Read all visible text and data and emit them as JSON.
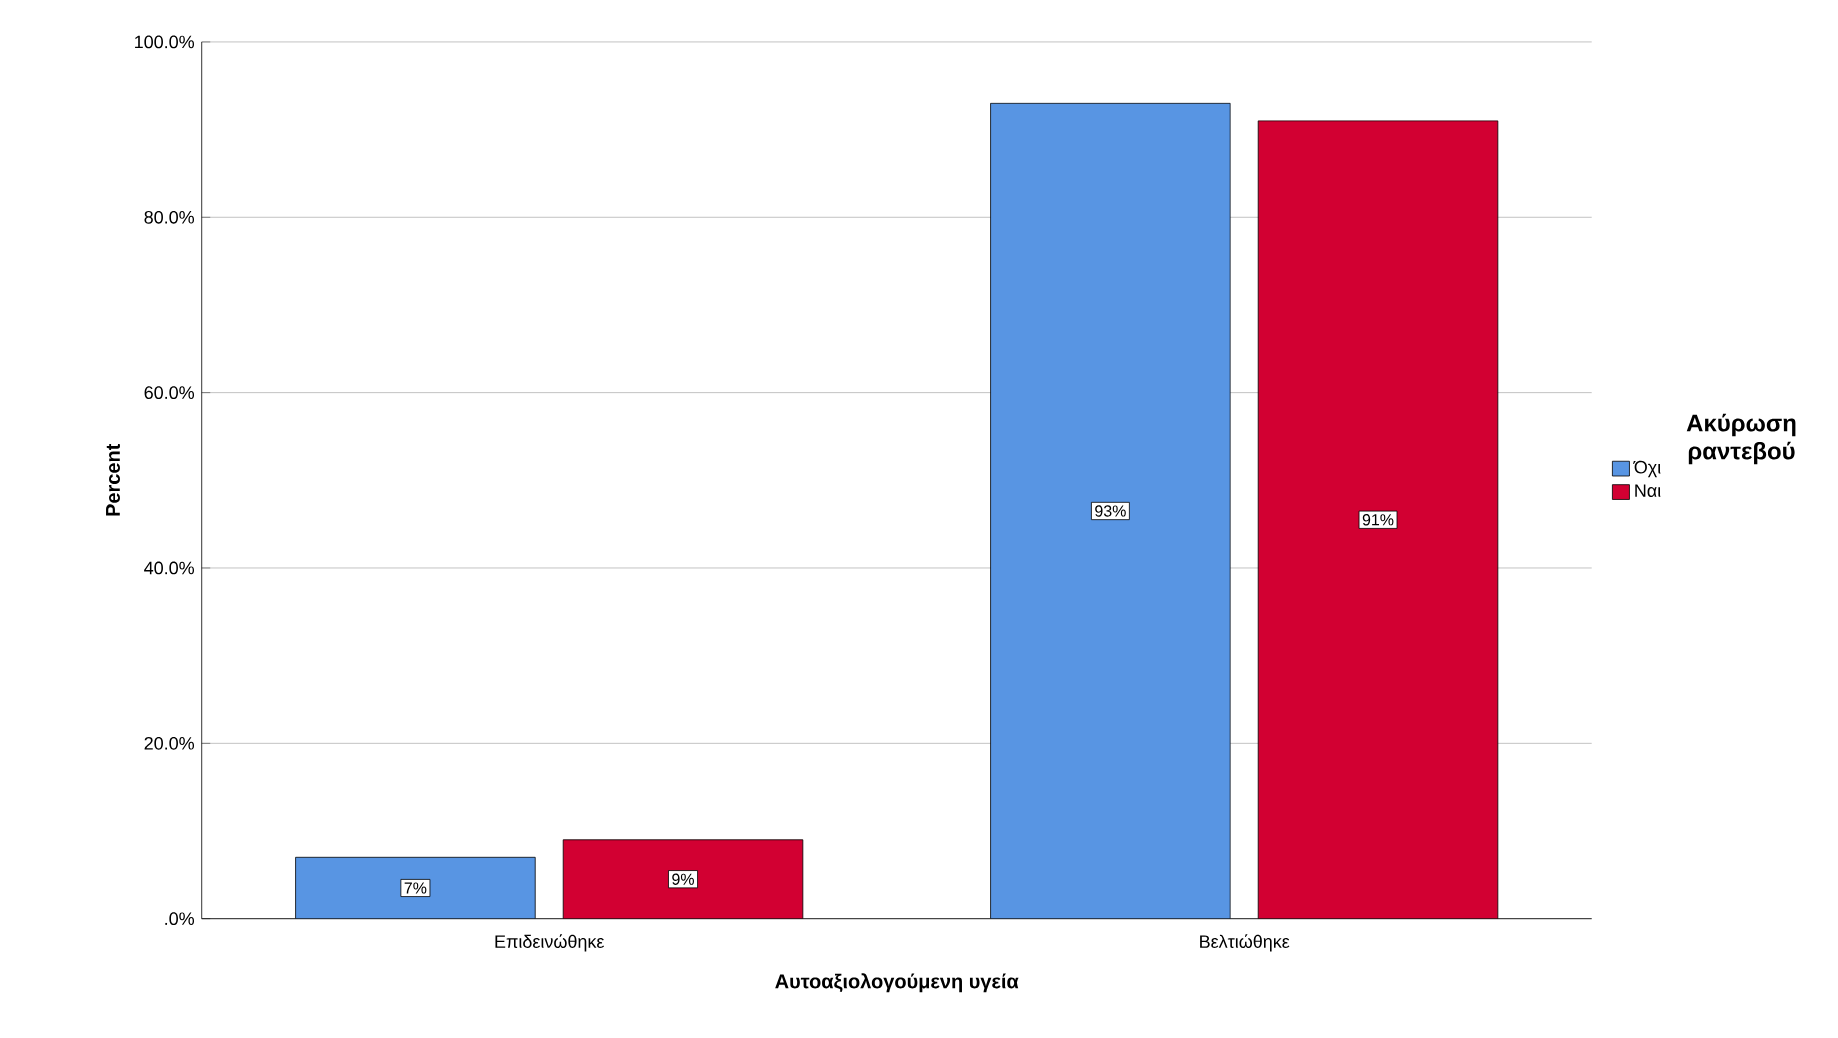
{
  "chart_data": {
    "type": "bar",
    "xlabel": "Αυτοαξιολογούμενη υγεία",
    "ylabel": "Percent",
    "legend_title": "Ακύρωση ραντεβού",
    "categories": [
      "Επιδεινώθηκε",
      "Βελτιώθηκε"
    ],
    "series": [
      {
        "name": "Όχι",
        "color": "#5895e3",
        "values": [
          7,
          93
        ],
        "value_labels": [
          "7%",
          "93%"
        ]
      },
      {
        "name": "Ναι",
        "color": "#d20032",
        "values": [
          9,
          91
        ],
        "value_labels": [
          "9%",
          "91%"
        ]
      }
    ],
    "ylim": [
      0,
      100
    ],
    "yticks": [
      {
        "value": 0,
        "label": ".0%"
      },
      {
        "value": 20,
        "label": "20.0%"
      },
      {
        "value": 40,
        "label": "40.0%"
      },
      {
        "value": 60,
        "label": "60.0%"
      },
      {
        "value": 80,
        "label": "80.0%"
      },
      {
        "value": 100,
        "label": "100.0%"
      }
    ],
    "grid": "y",
    "legend": "right"
  }
}
